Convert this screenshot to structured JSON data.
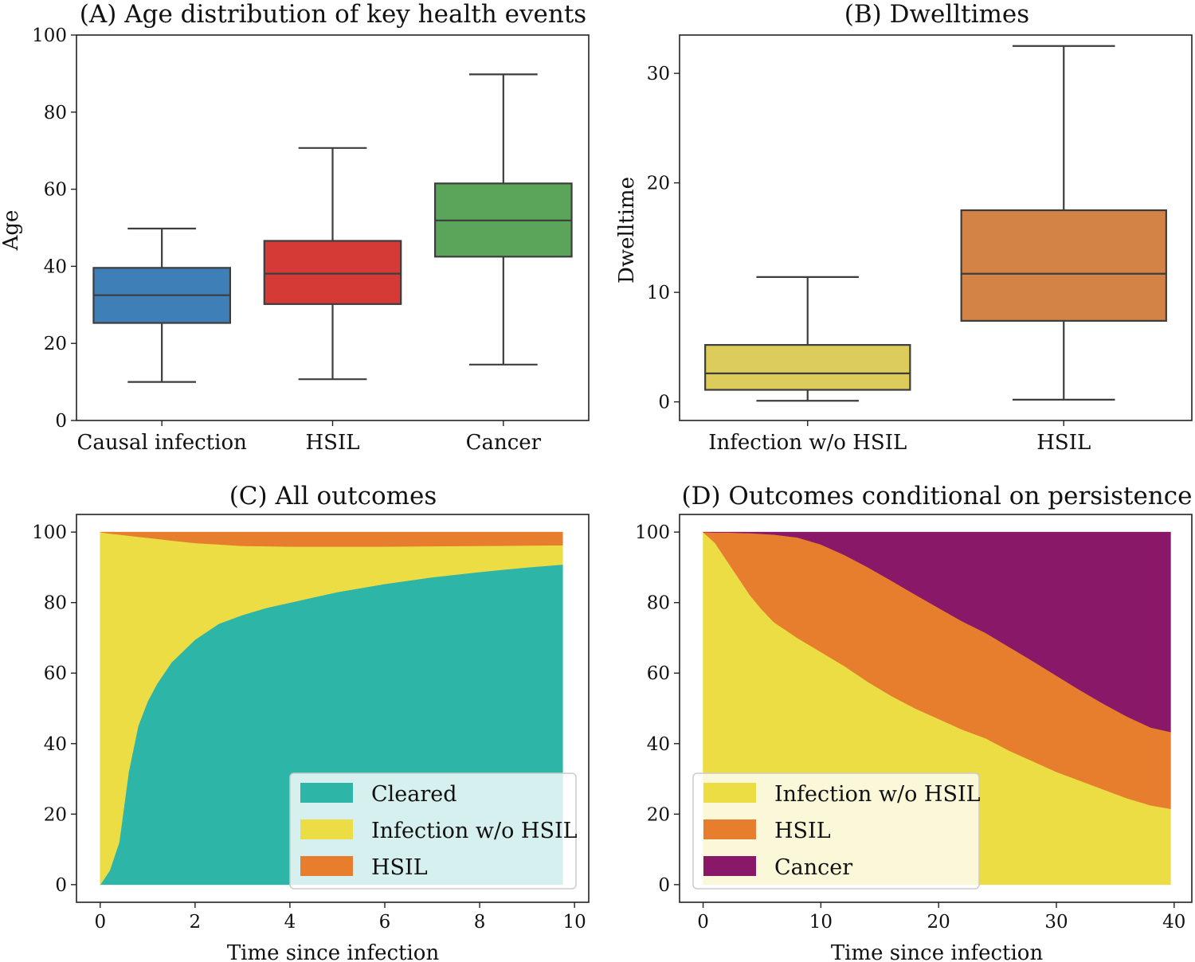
{
  "chart_data": [
    {
      "id": "A",
      "type": "box",
      "title": "(A) Age distribution of key health events",
      "xlabel": "",
      "ylabel": "Age",
      "ylim": [
        0,
        100
      ],
      "yticks": [
        0,
        20,
        40,
        60,
        80,
        100
      ],
      "categories": [
        "Causal infection",
        "HSIL",
        "Cancer"
      ],
      "boxes": [
        {
          "whislo": 10,
          "q1": 25.3,
          "median": 32.5,
          "q3": 39.6,
          "whishi": 49.8,
          "color": "#3f7fb8"
        },
        {
          "whislo": 10.7,
          "q1": 30.2,
          "median": 38.1,
          "q3": 46.6,
          "whishi": 70.7,
          "color": "#d63a37"
        },
        {
          "whislo": 14.5,
          "q1": 42.5,
          "median": 51.9,
          "q3": 61.5,
          "whishi": 89.8,
          "color": "#5aa55a"
        }
      ]
    },
    {
      "id": "B",
      "type": "box",
      "title": "(B) Dwelltimes",
      "xlabel": "",
      "ylabel": "Dwelltime",
      "ylim": [
        -1.7,
        33.5
      ],
      "yticks": [
        0,
        10,
        20,
        30
      ],
      "categories": [
        "Infection w/o HSIL",
        "HSIL"
      ],
      "boxes": [
        {
          "whislo": 0.1,
          "q1": 1.1,
          "median": 2.6,
          "q3": 5.2,
          "whishi": 11.4,
          "color": "#dbcc5b"
        },
        {
          "whislo": 0.2,
          "q1": 7.4,
          "median": 11.7,
          "q3": 17.5,
          "whishi": 32.5,
          "color": "#d48347"
        }
      ]
    },
    {
      "id": "C",
      "type": "area",
      "title": "(C) All outcomes",
      "xlabel": "Time since infection",
      "ylabel": "",
      "xlim": [
        -0.5,
        10.3
      ],
      "ylim": [
        -5,
        105
      ],
      "xticks": [
        0,
        2,
        4,
        6,
        8,
        10
      ],
      "yticks": [
        0,
        20,
        40,
        60,
        80,
        100
      ],
      "x": [
        0,
        0.2,
        0.4,
        0.6,
        0.8,
        1.0,
        1.2,
        1.5,
        2.0,
        2.5,
        3.0,
        3.5,
        4.0,
        5.0,
        6.0,
        7.0,
        8.0,
        9.0,
        9.75
      ],
      "series": [
        {
          "name": "Cleared",
          "color": "#2db5a8",
          "values": [
            0,
            4,
            12,
            32,
            45,
            52,
            57,
            63,
            69.5,
            74,
            76.5,
            78.5,
            80,
            83,
            85.3,
            87.2,
            88.7,
            90,
            90.8
          ]
        },
        {
          "name": "Infection w/o HSIL",
          "color": "#ecdd44",
          "values": [
            100,
            95.6,
            87.3,
            67,
            53.7,
            46.4,
            41.1,
            34.6,
            27.4,
            22.5,
            19.6,
            17.5,
            15.9,
            12.9,
            10.6,
            8.8,
            7.4,
            6.2,
            5.5
          ]
        },
        {
          "name": "HSIL",
          "color": "#e67e2e",
          "values": [
            0,
            0.4,
            0.7,
            1.0,
            1.3,
            1.6,
            1.9,
            2.4,
            3.1,
            3.5,
            3.9,
            4.0,
            4.1,
            4.1,
            4.1,
            4.0,
            3.9,
            3.8,
            3.7
          ]
        }
      ],
      "legend": {
        "position": "lower right",
        "entries": [
          "Cleared",
          "Infection w/o HSIL",
          "HSIL"
        ]
      }
    },
    {
      "id": "D",
      "type": "area",
      "title": "(D) Outcomes conditional on persistence",
      "xlabel": "Time since infection",
      "ylabel": "",
      "xlim": [
        -2,
        41.5
      ],
      "ylim": [
        -5,
        105
      ],
      "xticks": [
        0,
        10,
        20,
        30,
        40
      ],
      "yticks": [
        0,
        20,
        40,
        60,
        80,
        100
      ],
      "x": [
        0,
        1,
        2,
        3,
        4,
        5,
        6,
        8,
        10,
        12,
        14,
        16,
        18,
        20,
        22,
        24,
        26,
        28,
        30,
        32,
        34,
        36,
        38,
        39.7
      ],
      "series": [
        {
          "name": "Infection w/o HSIL",
          "color": "#ecdd44",
          "values": [
            100,
            97,
            92,
            87,
            82,
            78,
            74.5,
            70,
            66,
            62,
            57.5,
            53.5,
            50,
            47,
            44,
            41.5,
            38,
            35,
            32,
            29.5,
            27,
            24.5,
            22.5,
            21.5
          ]
        },
        {
          "name": "HSIL",
          "color": "#e67e2e",
          "values": [
            0,
            2.9,
            7.9,
            12.8,
            17.7,
            21.5,
            24.8,
            28.5,
            30.5,
            31.5,
            32.5,
            32.7,
            32.3,
            31.5,
            30.7,
            29.9,
            29.4,
            28.4,
            27.3,
            25.7,
            24.3,
            23.2,
            22.1,
            21.8
          ]
        },
        {
          "name": "Cancer",
          "color": "#891968",
          "values": [
            0,
            0.1,
            0.1,
            0.2,
            0.3,
            0.5,
            0.7,
            1.5,
            3.5,
            6.5,
            10,
            13.8,
            17.7,
            21.5,
            25.3,
            28.6,
            32.6,
            36.6,
            40.7,
            44.8,
            48.7,
            52.3,
            55.4,
            56.7
          ]
        }
      ],
      "legend": {
        "position": "lower left",
        "entries": [
          "Infection w/o HSIL",
          "HSIL",
          "Cancer"
        ]
      }
    }
  ]
}
